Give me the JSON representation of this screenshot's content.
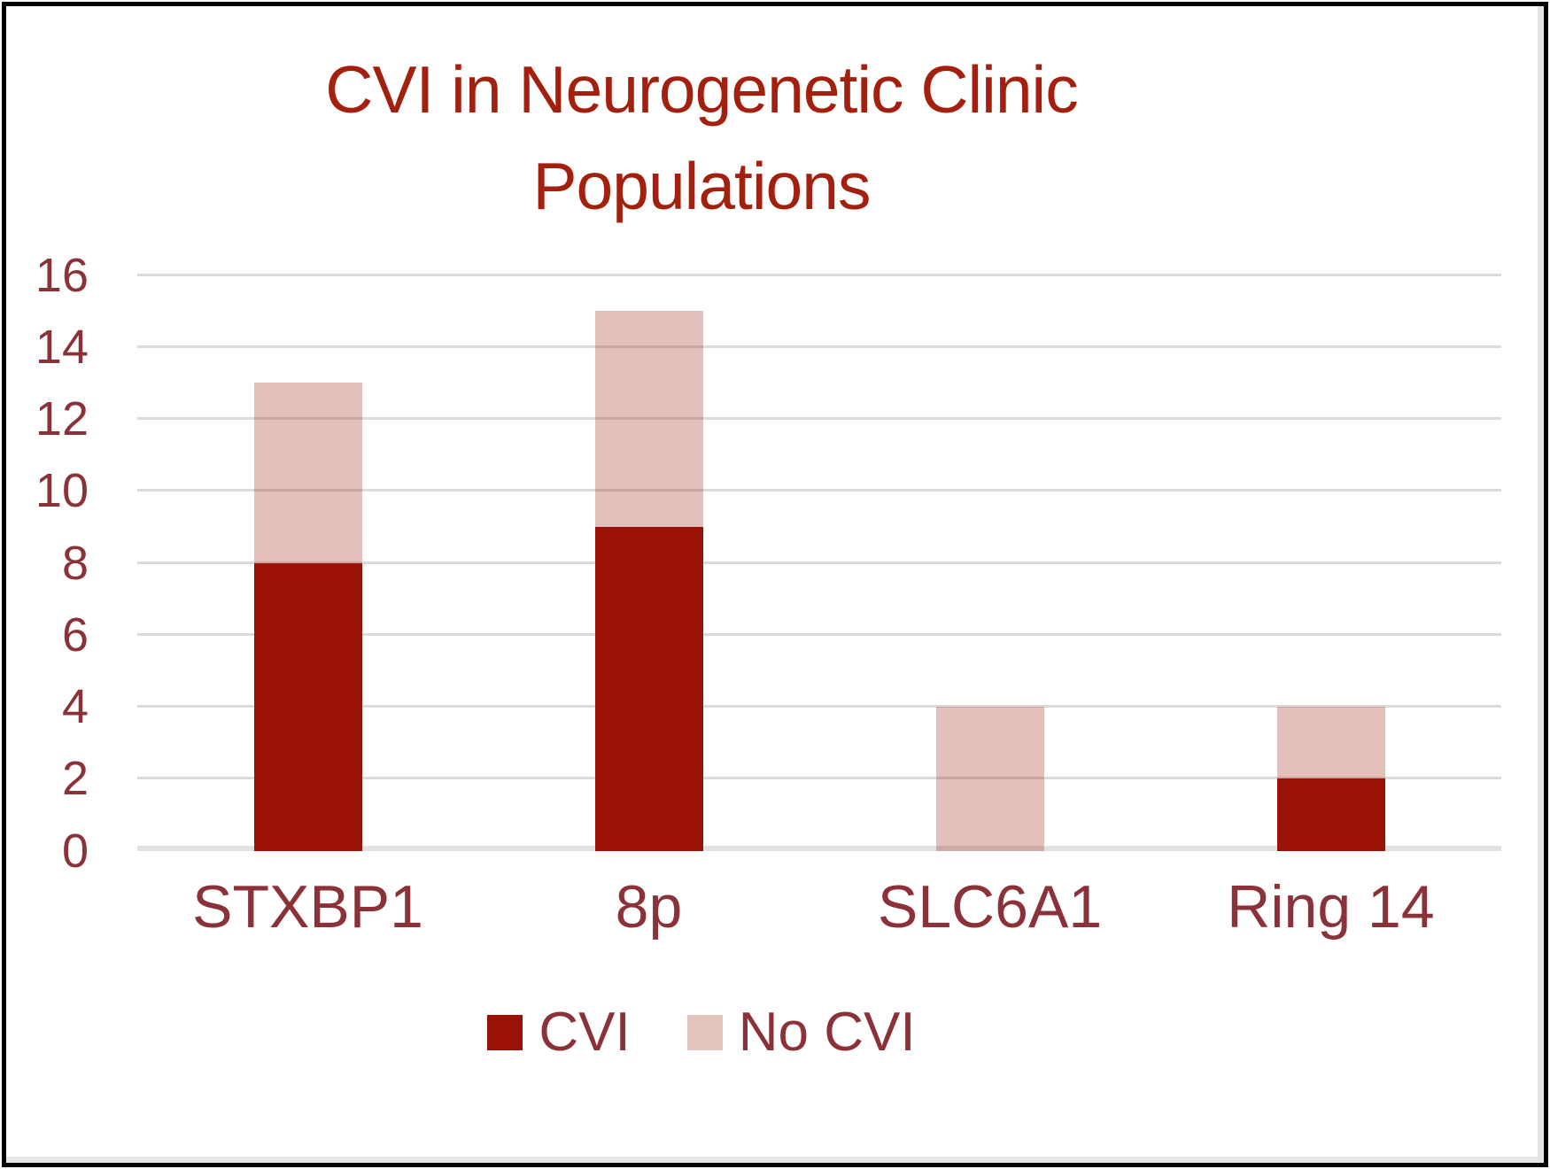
{
  "title": "CVI in Neurogenetic Clinic Populations",
  "chart_data": {
    "type": "bar",
    "stacked": true,
    "title": "CVI in Neurogenetic Clinic Populations",
    "categories": [
      "STXBP1",
      "8p",
      "SLC6A1",
      "Ring 14"
    ],
    "series": [
      {
        "name": "CVI",
        "color": "#9A1106",
        "render_fill": "#9A1106",
        "values": [
          8,
          9,
          0,
          2
        ]
      },
      {
        "name": "No CVI",
        "color": "#E3C3BE",
        "render_fill": "rgba(154,17,6,0.27)",
        "values": [
          5,
          6,
          4,
          2
        ]
      }
    ],
    "xlabel": "",
    "ylabel": "",
    "ylim": [
      0,
      16
    ],
    "yticks": [
      0,
      2,
      4,
      6,
      8,
      10,
      12,
      14,
      16
    ],
    "grid": "horizontal",
    "legend_position": "bottom"
  },
  "colors": {
    "title": "#A3200F",
    "axis_text": "#8B3138",
    "gridline": "#DBDBDB",
    "axis_line": "#E2E2E2",
    "frame_border": "#000000",
    "background": "#FFFFFF"
  }
}
